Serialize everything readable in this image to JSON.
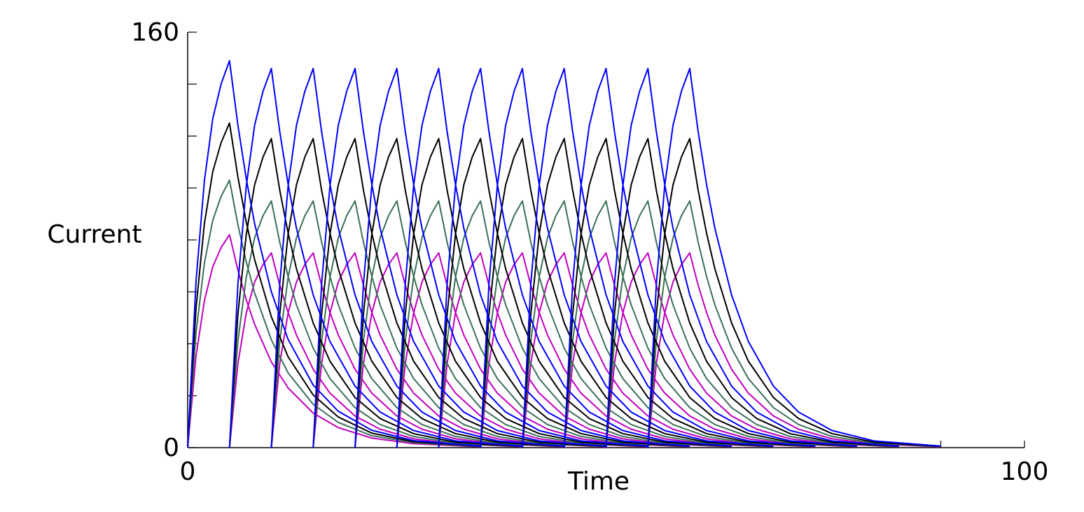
{
  "chart_data": {
    "type": "line",
    "xlabel": "Time",
    "ylabel": "Current",
    "xlim": [
      0,
      100
    ],
    "ylim": [
      0,
      160
    ],
    "xticks": [
      0,
      {
        "value": 90,
        "label": null
      },
      100
    ],
    "yticks": [
      0,
      {
        "value": 20,
        "label": null
      },
      {
        "value": 40,
        "label": null
      },
      {
        "value": 60,
        "label": null
      },
      {
        "value": 80,
        "label": null
      },
      {
        "value": 100,
        "label": null
      },
      {
        "value": 120,
        "label": null
      },
      {
        "value": 140,
        "label": null
      },
      160
    ],
    "x": [
      0,
      1,
      2,
      3,
      4,
      5,
      6,
      7,
      8,
      10,
      12,
      15,
      18,
      22,
      27,
      35,
      null,
      5,
      6,
      7,
      8,
      9,
      10,
      11,
      12,
      13,
      15,
      17,
      20,
      23,
      27,
      32,
      40,
      null,
      10,
      11,
      12,
      13,
      14,
      15,
      16,
      17,
      18,
      20,
      22,
      25,
      28,
      32,
      37,
      45,
      null,
      15,
      16,
      17,
      18,
      19,
      20,
      21,
      22,
      23,
      25,
      27,
      30,
      33,
      37,
      42,
      50,
      null,
      20,
      21,
      22,
      23,
      24,
      25,
      26,
      27,
      28,
      30,
      32,
      35,
      38,
      42,
      47,
      55,
      null,
      25,
      26,
      27,
      28,
      29,
      30,
      31,
      32,
      33,
      35,
      37,
      40,
      43,
      47,
      52,
      60,
      null,
      30,
      31,
      32,
      33,
      34,
      35,
      36,
      37,
      38,
      40,
      42,
      45,
      48,
      52,
      57,
      65,
      null,
      35,
      36,
      37,
      38,
      39,
      40,
      41,
      42,
      43,
      45,
      47,
      50,
      53,
      57,
      62,
      70,
      null,
      40,
      41,
      42,
      43,
      44,
      45,
      46,
      47,
      48,
      50,
      52,
      55,
      58,
      62,
      67,
      75,
      null,
      45,
      46,
      47,
      48,
      49,
      50,
      51,
      52,
      53,
      55,
      57,
      60,
      63,
      67,
      72,
      80,
      null,
      50,
      51,
      52,
      53,
      54,
      55,
      56,
      57,
      58,
      60,
      62,
      65,
      68,
      72,
      77,
      85,
      null,
      55,
      56,
      57,
      58,
      59,
      60,
      61,
      62,
      63,
      65,
      67,
      70,
      73,
      77,
      82,
      90
    ],
    "series": [
      {
        "color": "#c000c0",
        "values": [
          0,
          35.3,
          56.6,
          69.7,
          77.1,
          82,
          68.4,
          57.0,
          47.5,
          33.0,
          23.0,
          13.3,
          7.7,
          3.7,
          1.5,
          0.3,
          null,
          0,
          32.3,
          51.8,
          63.8,
          70.5,
          75,
          62.6,
          52.1,
          43.4,
          30.2,
          21.0,
          12.2,
          7.1,
          3.4,
          1.4,
          0.3,
          null,
          0,
          32.3,
          51.8,
          63.8,
          70.5,
          75,
          62.6,
          52.1,
          43.4,
          30.2,
          21.0,
          12.2,
          7.1,
          3.4,
          1.4,
          0.3,
          null,
          0,
          32.3,
          51.8,
          63.8,
          70.5,
          75,
          62.6,
          52.1,
          43.4,
          30.2,
          21.0,
          12.2,
          7.1,
          3.4,
          1.4,
          0.3,
          null,
          0,
          32.3,
          51.8,
          63.8,
          70.5,
          75,
          62.6,
          52.1,
          43.4,
          30.2,
          21.0,
          12.2,
          7.1,
          3.4,
          1.4,
          0.3,
          null,
          0,
          32.3,
          51.8,
          63.8,
          70.5,
          75,
          62.6,
          52.1,
          43.4,
          30.2,
          21.0,
          12.2,
          7.1,
          3.4,
          1.4,
          0.3,
          null,
          0,
          32.3,
          51.8,
          63.8,
          70.5,
          75,
          62.6,
          52.1,
          43.4,
          30.2,
          21.0,
          12.2,
          7.1,
          3.4,
          1.4,
          0.3,
          null,
          0,
          32.3,
          51.8,
          63.8,
          70.5,
          75,
          62.6,
          52.1,
          43.4,
          30.2,
          21.0,
          12.2,
          7.1,
          3.4,
          1.4,
          0.3,
          null,
          0,
          32.3,
          51.8,
          63.8,
          70.5,
          75,
          62.6,
          52.1,
          43.4,
          30.2,
          21.0,
          12.2,
          7.1,
          3.4,
          1.4,
          0.3,
          null,
          0,
          32.3,
          51.8,
          63.8,
          70.5,
          75,
          62.6,
          52.1,
          43.4,
          30.2,
          21.0,
          12.2,
          7.1,
          3.4,
          1.4,
          0.3,
          null,
          0,
          32.3,
          51.8,
          63.8,
          70.5,
          75,
          62.6,
          52.1,
          43.4,
          30.2,
          21.0,
          12.2,
          7.1,
          3.4,
          1.4,
          0.3,
          null,
          0,
          32.3,
          51.8,
          63.8,
          70.5,
          75,
          62.6,
          52.1,
          43.4,
          30.2,
          21.0,
          12.2,
          7.1,
          3.4,
          1.4,
          0.3
        ]
      },
      {
        "color": "#3a7055",
        "values": [
          0,
          44.3,
          71.1,
          87.6,
          96.8,
          103,
          85.9,
          71.6,
          59.6,
          41.5,
          28.8,
          16.7,
          9.7,
          4.6,
          1.9,
          0.4,
          null,
          0,
          40.9,
          65.6,
          80.8,
          89.3,
          95,
          79.2,
          66.0,
          55.0,
          38.3,
          26.6,
          15.4,
          8.9,
          4.3,
          1.7,
          0.4,
          null,
          0,
          40.9,
          65.6,
          80.8,
          89.3,
          95,
          79.2,
          66.0,
          55.0,
          38.3,
          26.6,
          15.4,
          8.9,
          4.3,
          1.7,
          0.4,
          null,
          0,
          40.9,
          65.6,
          80.8,
          89.3,
          95,
          79.2,
          66.0,
          55.0,
          38.3,
          26.6,
          15.4,
          8.9,
          4.3,
          1.7,
          0.4,
          null,
          0,
          40.9,
          65.6,
          80.8,
          89.3,
          95,
          79.2,
          66.0,
          55.0,
          38.3,
          26.6,
          15.4,
          8.9,
          4.3,
          1.7,
          0.4,
          null,
          0,
          40.9,
          65.6,
          80.8,
          89.3,
          95,
          79.2,
          66.0,
          55.0,
          38.3,
          26.6,
          15.4,
          8.9,
          4.3,
          1.7,
          0.4,
          null,
          0,
          40.9,
          65.6,
          80.8,
          89.3,
          95,
          79.2,
          66.0,
          55.0,
          38.3,
          26.6,
          15.4,
          8.9,
          4.3,
          1.7,
          0.4,
          null,
          0,
          40.9,
          65.6,
          80.8,
          89.3,
          95,
          79.2,
          66.0,
          55.0,
          38.3,
          26.6,
          15.4,
          8.9,
          4.3,
          1.7,
          0.4,
          null,
          0,
          40.9,
          65.6,
          80.8,
          89.3,
          95,
          79.2,
          66.0,
          55.0,
          38.3,
          26.6,
          15.4,
          8.9,
          4.3,
          1.7,
          0.4,
          null,
          0,
          40.9,
          65.6,
          80.8,
          89.3,
          95,
          79.2,
          66.0,
          55.0,
          38.3,
          26.6,
          15.4,
          8.9,
          4.3,
          1.7,
          0.4,
          null,
          0,
          40.9,
          65.6,
          80.8,
          89.3,
          95,
          79.2,
          66.0,
          55.0,
          38.3,
          26.6,
          15.4,
          8.9,
          4.3,
          1.7,
          0.4,
          null,
          0,
          40.9,
          65.6,
          80.8,
          89.3,
          95,
          79.2,
          66.0,
          55.0,
          38.3,
          26.6,
          15.4,
          8.9,
          4.3,
          1.7,
          0.4
        ]
      },
      {
        "color": "#000000",
        "values": [
          0,
          53.8,
          86.3,
          106.3,
          117.5,
          125,
          104.3,
          86.9,
          72.4,
          50.4,
          35.0,
          20.3,
          11.8,
          5.6,
          2.3,
          0.5,
          null,
          0,
          51.2,
          82.1,
          101.2,
          111.9,
          119,
          99.2,
          82.7,
          68.9,
          48.0,
          33.3,
          19.3,
          11.2,
          5.4,
          2.1,
          0.5,
          null,
          0,
          51.2,
          82.1,
          101.2,
          111.9,
          119,
          99.2,
          82.7,
          68.9,
          48.0,
          33.3,
          19.3,
          11.2,
          5.4,
          2.1,
          0.5,
          null,
          0,
          51.2,
          82.1,
          101.2,
          111.9,
          119,
          99.2,
          82.7,
          68.9,
          48.0,
          33.3,
          19.3,
          11.2,
          5.4,
          2.1,
          0.5,
          null,
          0,
          51.2,
          82.1,
          101.2,
          111.9,
          119,
          99.2,
          82.7,
          68.9,
          48.0,
          33.3,
          19.3,
          11.2,
          5.4,
          2.1,
          0.5,
          null,
          0,
          51.2,
          82.1,
          101.2,
          111.9,
          119,
          99.2,
          82.7,
          68.9,
          48.0,
          33.3,
          19.3,
          11.2,
          5.4,
          2.1,
          0.5,
          null,
          0,
          51.2,
          82.1,
          101.2,
          111.9,
          119,
          99.2,
          82.7,
          68.9,
          48.0,
          33.3,
          19.3,
          11.2,
          5.4,
          2.1,
          0.5,
          null,
          0,
          51.2,
          82.1,
          101.2,
          111.9,
          119,
          99.2,
          82.7,
          68.9,
          48.0,
          33.3,
          19.3,
          11.2,
          5.4,
          2.1,
          0.5,
          null,
          0,
          51.2,
          82.1,
          101.2,
          111.9,
          119,
          99.2,
          82.7,
          68.9,
          48.0,
          33.3,
          19.3,
          11.2,
          5.4,
          2.1,
          0.5,
          null,
          0,
          51.2,
          82.1,
          101.2,
          111.9,
          119,
          99.2,
          82.7,
          68.9,
          48.0,
          33.3,
          19.3,
          11.2,
          5.4,
          2.1,
          0.5,
          null,
          0,
          51.2,
          82.1,
          101.2,
          111.9,
          119,
          99.2,
          82.7,
          68.9,
          48.0,
          33.3,
          19.3,
          11.2,
          5.4,
          2.1,
          0.5,
          null,
          0,
          51.2,
          82.1,
          101.2,
          111.9,
          119,
          99.2,
          82.7,
          68.9,
          48.0,
          33.3,
          19.3,
          11.2,
          5.4,
          2.1,
          0.5
        ]
      },
      {
        "color": "#0000ff",
        "values": [
          0,
          64.1,
          102.8,
          126.7,
          140.1,
          149,
          124.3,
          103.6,
          86.3,
          60.0,
          41.7,
          24.1,
          14.0,
          6.7,
          2.7,
          0.6,
          null,
          0,
          62.8,
          100.7,
          124.1,
          137.2,
          146,
          121.8,
          101.5,
          84.5,
          58.8,
          40.9,
          23.7,
          13.7,
          6.6,
          2.6,
          0.6,
          null,
          0,
          62.8,
          100.7,
          124.1,
          137.2,
          146,
          121.8,
          101.5,
          84.5,
          58.8,
          40.9,
          23.7,
          13.7,
          6.6,
          2.6,
          0.6,
          null,
          0,
          62.8,
          100.7,
          124.1,
          137.2,
          146,
          121.8,
          101.5,
          84.5,
          58.8,
          40.9,
          23.7,
          13.7,
          6.6,
          2.6,
          0.6,
          null,
          0,
          62.8,
          100.7,
          124.1,
          137.2,
          146,
          121.8,
          101.5,
          84.5,
          58.8,
          40.9,
          23.7,
          13.7,
          6.6,
          2.6,
          0.6,
          null,
          0,
          62.8,
          100.7,
          124.1,
          137.2,
          146,
          121.8,
          101.5,
          84.5,
          58.8,
          40.9,
          23.7,
          13.7,
          6.6,
          2.6,
          0.6,
          null,
          0,
          62.8,
          100.7,
          124.1,
          137.2,
          146,
          121.8,
          101.5,
          84.5,
          58.8,
          40.9,
          23.7,
          13.7,
          6.6,
          2.6,
          0.6,
          null,
          0,
          62.8,
          100.7,
          124.1,
          137.2,
          146,
          121.8,
          101.5,
          84.5,
          58.8,
          40.9,
          23.7,
          13.7,
          6.6,
          2.6,
          0.6,
          null,
          0,
          62.8,
          100.7,
          124.1,
          137.2,
          146,
          121.8,
          101.5,
          84.5,
          58.8,
          40.9,
          23.7,
          13.7,
          6.6,
          2.6,
          0.6,
          null,
          0,
          62.8,
          100.7,
          124.1,
          137.2,
          146,
          121.8,
          101.5,
          84.5,
          58.8,
          40.9,
          23.7,
          13.7,
          6.6,
          2.6,
          0.6,
          null,
          0,
          62.8,
          100.7,
          124.1,
          137.2,
          146,
          121.8,
          101.5,
          84.5,
          58.8,
          40.9,
          23.7,
          13.7,
          6.6,
          2.6,
          0.6,
          null,
          0,
          62.8,
          100.7,
          124.1,
          137.2,
          146,
          121.8,
          101.5,
          84.5,
          58.8,
          40.9,
          23.7,
          13.7,
          6.6,
          2.6,
          0.6
        ]
      }
    ]
  }
}
